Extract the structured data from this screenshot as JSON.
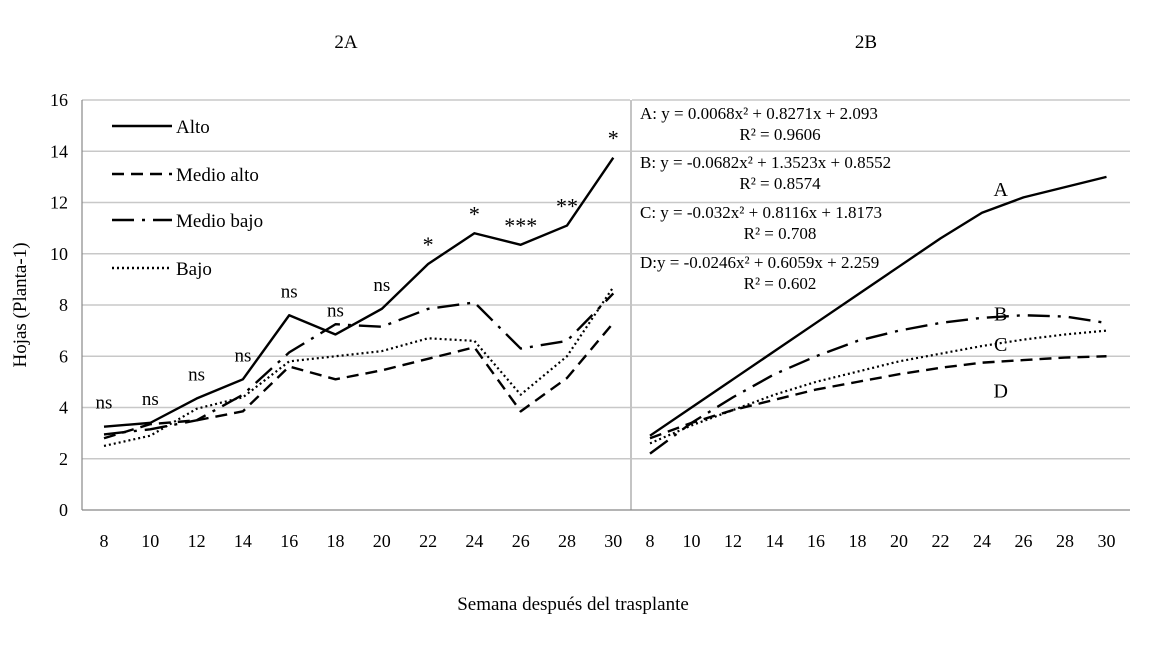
{
  "chart_data": [
    {
      "panel": "2A",
      "type": "line",
      "title": "2A",
      "xlabel": "Semana después del trasplante",
      "ylabel": "Hojas (Planta-1)",
      "ylim": [
        0,
        16
      ],
      "yticks": [
        0,
        2,
        4,
        6,
        8,
        10,
        12,
        14,
        16
      ],
      "x": [
        8,
        10,
        12,
        14,
        16,
        18,
        20,
        22,
        24,
        26,
        28,
        30
      ],
      "grid": true,
      "legend_position": "top-left",
      "series": [
        {
          "name": "Alto",
          "style": "solid",
          "values": [
            3.25,
            3.4,
            4.35,
            5.1,
            7.6,
            6.85,
            7.85,
            9.6,
            10.8,
            10.35,
            11.1,
            13.75
          ]
        },
        {
          "name": "Medio alto",
          "style": "dashed",
          "values": [
            2.8,
            3.35,
            3.5,
            3.85,
            5.6,
            5.1,
            5.45,
            5.9,
            6.35,
            3.85,
            5.15,
            7.3
          ]
        },
        {
          "name": "Medio bajo",
          "style": "dashdot",
          "values": [
            2.95,
            3.15,
            3.5,
            4.5,
            6.15,
            7.25,
            7.15,
            7.85,
            8.1,
            6.3,
            6.6,
            8.45
          ]
        },
        {
          "name": "Bajo",
          "style": "dotted",
          "values": [
            2.5,
            2.9,
            3.95,
            4.4,
            5.8,
            6.0,
            6.2,
            6.7,
            6.6,
            4.5,
            6.0,
            8.7
          ]
        }
      ],
      "significance": [
        "ns",
        "ns",
        "ns",
        "ns",
        "ns",
        "ns",
        "ns",
        "*",
        "*",
        "***",
        "**",
        "*"
      ]
    },
    {
      "panel": "2B",
      "type": "line",
      "title": "2B",
      "ylim": [
        0,
        16
      ],
      "x": [
        8,
        10,
        12,
        14,
        16,
        18,
        20,
        22,
        24,
        26,
        28,
        30
      ],
      "grid": true,
      "series": [
        {
          "name": "A",
          "style": "solid",
          "values": [
            2.9,
            4.0,
            5.1,
            6.2,
            7.3,
            8.4,
            9.5,
            10.6,
            11.6,
            12.2,
            12.6,
            13.0
          ]
        },
        {
          "name": "B",
          "style": "dashdot",
          "values": [
            2.2,
            3.4,
            4.4,
            5.3,
            6.0,
            6.6,
            7.0,
            7.3,
            7.5,
            7.6,
            7.55,
            7.3
          ]
        },
        {
          "name": "C",
          "style": "dotted",
          "values": [
            2.6,
            3.3,
            3.9,
            4.5,
            5.0,
            5.4,
            5.8,
            6.1,
            6.4,
            6.65,
            6.85,
            7.0
          ]
        },
        {
          "name": "D",
          "style": "dashed",
          "values": [
            2.8,
            3.4,
            3.9,
            4.3,
            4.7,
            5.0,
            5.3,
            5.55,
            5.75,
            5.85,
            5.95,
            6.0
          ]
        }
      ],
      "equations": [
        {
          "eq": "A: y = 0.0068x² + 0.8271x + 2.093",
          "r2": "R² = 0.9606"
        },
        {
          "eq": "B: y = -0.0682x² + 1.3523x + 0.8552",
          "r2": "R² = 0.8574"
        },
        {
          "eq": "C: y = -0.032x² + 0.8116x + 1.8173",
          "r2": "R² = 0.708"
        },
        {
          "eq": "D:y = -0.0246x² + 0.6059x + 2.259",
          "r2": "R² = 0.602"
        }
      ]
    }
  ]
}
